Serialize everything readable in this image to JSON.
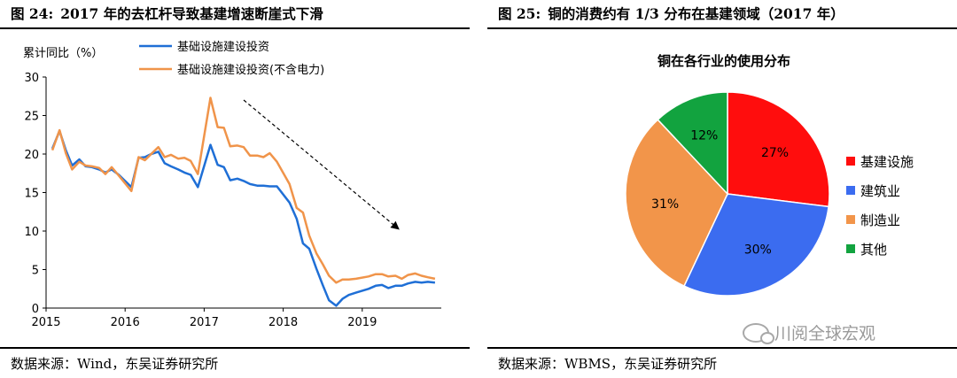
{
  "left": {
    "fig_label": "图 24:",
    "title": "2017 年的去杠杆导致基建增速断崖式下滑",
    "source": "数据来源：Wind，东吴证券研究所"
  },
  "right": {
    "fig_label": "图 25:",
    "title": "铜的消费约有 1/3 分布在基建领域（2017 年）",
    "source": "数据来源：WBMS，东吴证券研究所"
  },
  "watermark": "川阅全球宏观",
  "chart_data": [
    {
      "type": "line",
      "ylabel": "累计同比（%）",
      "ylim": [
        0,
        30
      ],
      "yticks": [
        0,
        5,
        10,
        15,
        20,
        25,
        30
      ],
      "xlim": [
        2015,
        2020
      ],
      "xticks": [
        2015,
        2016,
        2017,
        2018,
        2019
      ],
      "legend_position": "top",
      "annotation": "downward-trend-arrow",
      "series": [
        {
          "name": "基础设施建设投资",
          "color": "#1f6fd6",
          "x": [
            2015.08,
            2015.17,
            2015.25,
            2015.33,
            2015.42,
            2015.5,
            2015.58,
            2015.67,
            2015.75,
            2015.83,
            2015.92,
            2016.08,
            2016.17,
            2016.25,
            2016.33,
            2016.42,
            2016.5,
            2016.58,
            2016.67,
            2016.75,
            2016.83,
            2016.92,
            2017.08,
            2017.17,
            2017.25,
            2017.33,
            2017.42,
            2017.5,
            2017.58,
            2017.67,
            2017.75,
            2017.83,
            2017.92,
            2018.08,
            2018.17,
            2018.25,
            2018.33,
            2018.42,
            2018.5,
            2018.58,
            2018.67,
            2018.75,
            2018.83,
            2018.92,
            2019.08,
            2019.17,
            2019.25,
            2019.33,
            2019.42,
            2019.5,
            2019.58,
            2019.67,
            2019.75,
            2019.83,
            2019.92
          ],
          "y": [
            20.7,
            23.0,
            20.5,
            18.5,
            19.3,
            18.4,
            18.3,
            18.0,
            17.6,
            18.0,
            17.3,
            15.7,
            19.5,
            19.6,
            20.0,
            20.3,
            18.8,
            18.4,
            18.0,
            17.6,
            17.3,
            15.7,
            21.2,
            18.6,
            18.3,
            16.6,
            16.8,
            16.5,
            16.1,
            15.9,
            15.9,
            15.8,
            15.8,
            13.7,
            11.6,
            8.4,
            7.7,
            5.1,
            3.0,
            1.0,
            0.3,
            1.2,
            1.7,
            2.0,
            2.5,
            2.9,
            3.0,
            2.6,
            2.9,
            2.9,
            3.2,
            3.4,
            3.3,
            3.4,
            3.3
          ]
        },
        {
          "name": "基础设施建设投资(不含电力)",
          "color": "#f0944a",
          "x": [
            2015.08,
            2015.17,
            2015.25,
            2015.33,
            2015.42,
            2015.5,
            2015.58,
            2015.67,
            2015.75,
            2015.83,
            2015.92,
            2016.08,
            2016.17,
            2016.25,
            2016.33,
            2016.42,
            2016.5,
            2016.58,
            2016.67,
            2016.75,
            2016.83,
            2016.92,
            2017.08,
            2017.17,
            2017.25,
            2017.33,
            2017.42,
            2017.5,
            2017.58,
            2017.67,
            2017.75,
            2017.83,
            2017.92,
            2018.08,
            2018.17,
            2018.25,
            2018.33,
            2018.42,
            2018.5,
            2018.58,
            2018.67,
            2018.75,
            2018.83,
            2018.92,
            2019.08,
            2019.17,
            2019.25,
            2019.33,
            2019.42,
            2019.5,
            2019.58,
            2019.67,
            2019.75,
            2019.83,
            2019.92
          ],
          "y": [
            20.5,
            23.1,
            20.1,
            18.0,
            19.0,
            18.5,
            18.4,
            18.2,
            17.4,
            18.3,
            17.2,
            15.2,
            19.6,
            19.2,
            20.0,
            20.9,
            19.6,
            19.9,
            19.4,
            19.5,
            19.1,
            17.4,
            27.3,
            23.5,
            23.4,
            21.0,
            21.1,
            20.9,
            19.8,
            19.8,
            19.6,
            20.1,
            19.0,
            16.1,
            13.0,
            12.4,
            9.4,
            7.1,
            5.7,
            4.2,
            3.3,
            3.7,
            3.7,
            3.8,
            4.1,
            4.4,
            4.4,
            4.1,
            4.2,
            3.8,
            4.3,
            4.5,
            4.2,
            4.0,
            3.8
          ]
        }
      ]
    },
    {
      "type": "pie",
      "title": "铜在各行业的使用分布",
      "legend_position": "right",
      "categories": [
        "基建设施",
        "建筑业",
        "制造业",
        "其他"
      ],
      "values": [
        27,
        30,
        31,
        12
      ],
      "labels": [
        "27%",
        "30%",
        "31%",
        "12%"
      ],
      "colors": [
        "#ff0d0d",
        "#3b6cf0",
        "#f2954a",
        "#12a33f"
      ]
    }
  ]
}
